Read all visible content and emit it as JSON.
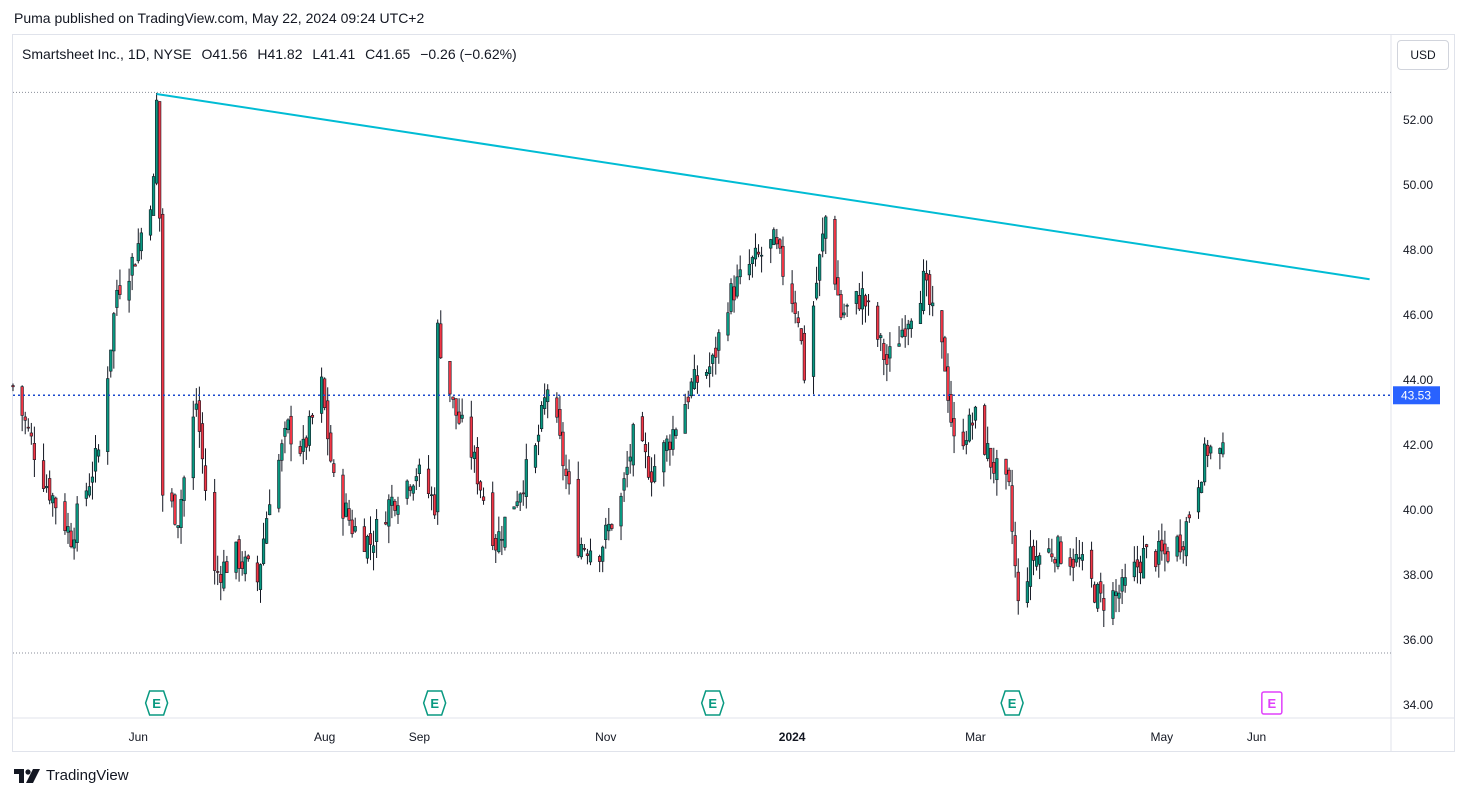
{
  "header": {
    "text": "Puma published on TradingView.com, May 22, 2024 09:24 UTC+2"
  },
  "legend": {
    "symbol": "Smartsheet Inc., 1D, NYSE",
    "open_label": "O",
    "open": "41.56",
    "high_label": "H",
    "high": "41.82",
    "low_label": "L",
    "low": "41.41",
    "close_label": "C",
    "close": "41.65",
    "change": "−0.26 (−0.62%)"
  },
  "currency": "USD",
  "footer": {
    "brand": "TradingView"
  },
  "colors": {
    "up": "#089981",
    "down": "#f23645",
    "wick": "#131722",
    "trendline": "#00bcd4",
    "hline": "#1848cc",
    "earnings": "#089981",
    "earnings_future": "#e040fb",
    "price_tag_bg": "#2962ff"
  },
  "chart_data": {
    "type": "candlestick",
    "ylim": [
      33.5,
      53.8
    ],
    "y_ticks": [
      "52.00",
      "50.00",
      "48.00",
      "46.00",
      "44.00",
      "42.00",
      "40.00",
      "38.00",
      "36.00",
      "34.00"
    ],
    "x_ticks": [
      {
        "label": "Jun",
        "date": "2023-06-01"
      },
      {
        "label": "Aug",
        "date": "2023-08-01"
      },
      {
        "label": "Sep",
        "date": "2023-09-01"
      },
      {
        "label": "Nov",
        "date": "2023-11-01"
      },
      {
        "label": "2024",
        "date": "2024-01-01",
        "bold": true
      },
      {
        "label": "Mar",
        "date": "2024-03-01"
      },
      {
        "label": "May",
        "date": "2024-05-01"
      },
      {
        "label": "Jun",
        "date": "2024-06-01"
      }
    ],
    "date_range": [
      "2023-04-21",
      "2024-07-15"
    ],
    "hline": {
      "price": 43.53,
      "label": "43.53"
    },
    "range_lines": [
      52.85,
      35.6
    ],
    "trendline": [
      {
        "date": "2023-06-07",
        "price": 52.8
      },
      {
        "date": "2024-07-08",
        "price": 47.1
      }
    ],
    "earnings": [
      {
        "date": "2023-06-07",
        "label": "E"
      },
      {
        "date": "2023-09-06",
        "label": "E"
      },
      {
        "date": "2023-12-06",
        "label": "E"
      },
      {
        "date": "2024-03-13",
        "label": "E"
      },
      {
        "date": "2024-06-06",
        "label": "E",
        "future": true
      }
    ],
    "anchors": [
      [
        "2023-04-21",
        43.8
      ],
      [
        "2023-05-01",
        41.0
      ],
      [
        "2023-05-10",
        39.2
      ],
      [
        "2023-05-19",
        41.8
      ],
      [
        "2023-05-25",
        46.8
      ],
      [
        "2023-05-31",
        47.8
      ],
      [
        "2023-06-06",
        50.0
      ],
      [
        "2023-06-07",
        52.5
      ],
      [
        "2023-06-08",
        49.0
      ],
      [
        "2023-06-09",
        40.5
      ],
      [
        "2023-06-14",
        39.8
      ],
      [
        "2023-06-20",
        43.3
      ],
      [
        "2023-06-26",
        38.0
      ],
      [
        "2023-07-03",
        38.6
      ],
      [
        "2023-07-10",
        37.8
      ],
      [
        "2023-07-14",
        40.5
      ],
      [
        "2023-07-20",
        42.5
      ],
      [
        "2023-07-25",
        41.8
      ],
      [
        "2023-07-31",
        43.8
      ],
      [
        "2023-08-04",
        40.8
      ],
      [
        "2023-08-10",
        39.5
      ],
      [
        "2023-08-16",
        39.0
      ],
      [
        "2023-08-22",
        40.2
      ],
      [
        "2023-08-31",
        41.2
      ],
      [
        "2023-09-06",
        40.2
      ],
      [
        "2023-09-07",
        45.5
      ],
      [
        "2023-09-12",
        43.2
      ],
      [
        "2023-09-18",
        41.8
      ],
      [
        "2023-09-26",
        39.0
      ],
      [
        "2023-10-03",
        40.5
      ],
      [
        "2023-10-09",
        41.8
      ],
      [
        "2023-10-13",
        43.8
      ],
      [
        "2023-10-17",
        42.0
      ],
      [
        "2023-10-23",
        39.0
      ],
      [
        "2023-10-30",
        38.8
      ],
      [
        "2023-11-06",
        40.3
      ],
      [
        "2023-11-10",
        42.2
      ],
      [
        "2023-11-16",
        41.2
      ],
      [
        "2023-11-22",
        42.2
      ],
      [
        "2023-11-29",
        43.8
      ],
      [
        "2023-12-06",
        44.5
      ],
      [
        "2023-12-11",
        46.5
      ],
      [
        "2023-12-18",
        47.5
      ],
      [
        "2023-12-26",
        48.2
      ],
      [
        "2024-01-03",
        46.0
      ],
      [
        "2024-01-05",
        44.2
      ],
      [
        "2024-01-09",
        47.0
      ],
      [
        "2024-01-12",
        49.0
      ],
      [
        "2024-01-17",
        46.0
      ],
      [
        "2024-01-24",
        46.6
      ],
      [
        "2024-02-01",
        44.5
      ],
      [
        "2024-02-08",
        46.0
      ],
      [
        "2024-02-13",
        47.0
      ],
      [
        "2024-02-20",
        44.5
      ],
      [
        "2024-02-23",
        42.0
      ],
      [
        "2024-03-01",
        42.8
      ],
      [
        "2024-03-06",
        41.5
      ],
      [
        "2024-03-12",
        40.5
      ],
      [
        "2024-03-15",
        37.0
      ],
      [
        "2024-03-19",
        38.5
      ],
      [
        "2024-03-27",
        38.8
      ],
      [
        "2024-04-04",
        38.4
      ],
      [
        "2024-04-11",
        37.2
      ],
      [
        "2024-04-18",
        37.5
      ],
      [
        "2024-04-25",
        38.6
      ],
      [
        "2024-05-02",
        38.6
      ],
      [
        "2024-05-08",
        39.2
      ],
      [
        "2024-05-13",
        41.0
      ],
      [
        "2024-05-16",
        41.9
      ],
      [
        "2024-05-21",
        41.65
      ]
    ]
  }
}
